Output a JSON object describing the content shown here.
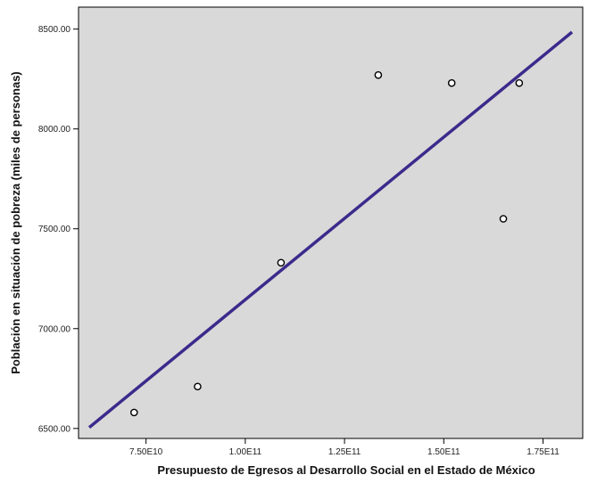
{
  "chart_data": {
    "type": "scatter",
    "title": "",
    "xlabel": "Presupuesto de Egresos al Desarrollo Social en el Estado de México",
    "ylabel": "Población en situación de pobreza (miles de personas)",
    "xlim": [
      58000000000.0,
      185000000000.0
    ],
    "ylim": [
      6450,
      8610
    ],
    "x_ticks": [
      {
        "value": 75000000000.0,
        "label": "7.50E10"
      },
      {
        "value": 100000000000.0,
        "label": "1.00E11"
      },
      {
        "value": 125000000000.0,
        "label": "1.25E11"
      },
      {
        "value": 150000000000.0,
        "label": "1.50E11"
      },
      {
        "value": 175000000000.0,
        "label": "1.75E11"
      }
    ],
    "y_ticks": [
      {
        "value": 6500,
        "label": "6500.00"
      },
      {
        "value": 7000,
        "label": "7000.00"
      },
      {
        "value": 7500,
        "label": "7500.00"
      },
      {
        "value": 8000,
        "label": "8000.00"
      },
      {
        "value": 8500,
        "label": "8500.00"
      }
    ],
    "points": [
      {
        "x": 72000000000.0,
        "y": 6580
      },
      {
        "x": 88000000000.0,
        "y": 6710
      },
      {
        "x": 109000000000.0,
        "y": 7330
      },
      {
        "x": 133500000000.0,
        "y": 8270
      },
      {
        "x": 152000000000.0,
        "y": 8230
      },
      {
        "x": 165000000000.0,
        "y": 7550
      },
      {
        "x": 169000000000.0,
        "y": 8230
      }
    ],
    "fit_line": {
      "x1": 61000000000.0,
      "y1": 6510,
      "x2": 182000000000.0,
      "y2": 8480
    },
    "grid": false,
    "colors": {
      "plot_background": "#d9d9d9",
      "fit_line": "#3c2a8c",
      "marker_fill": "#ffffff",
      "marker_stroke": "#000000"
    }
  }
}
